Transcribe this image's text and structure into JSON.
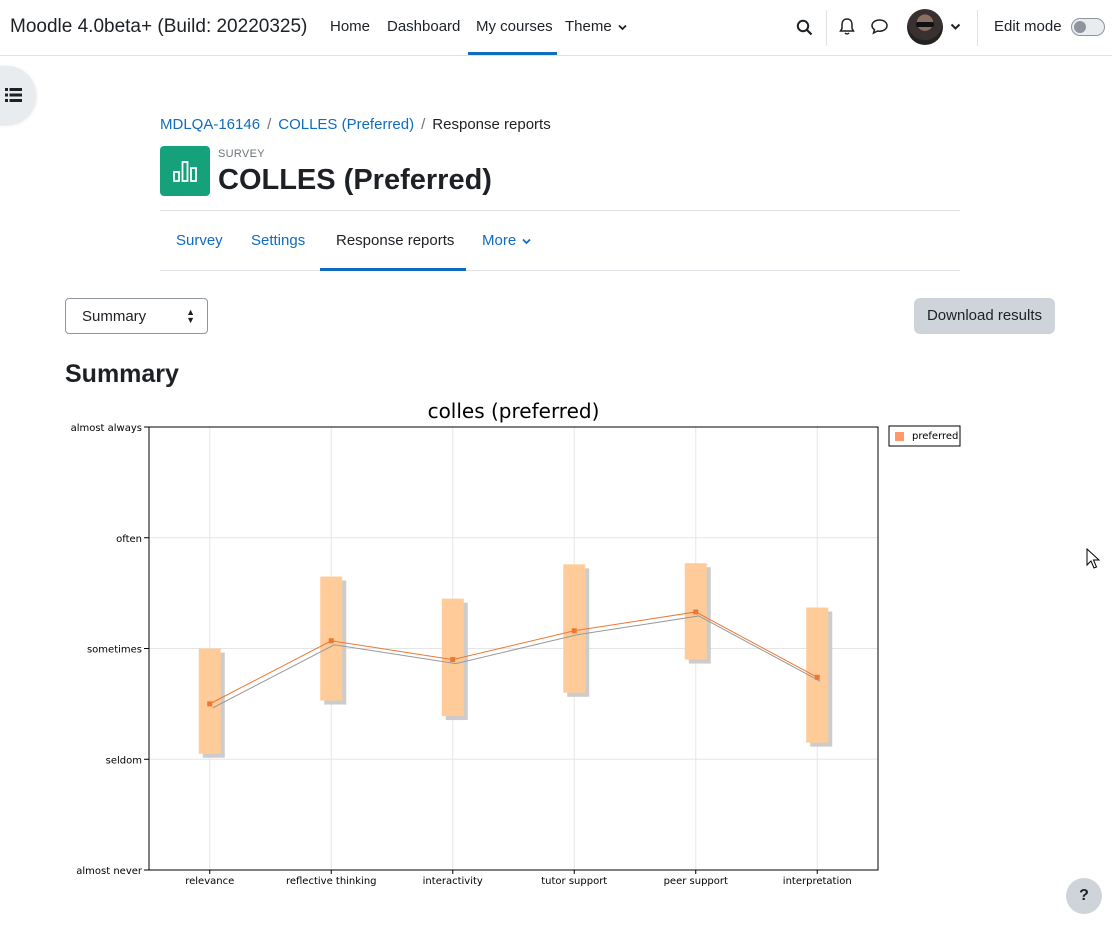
{
  "navbar": {
    "site_name": "Moodle 4.0beta+ (Build: 20220325)",
    "links": [
      "Home",
      "Dashboard",
      "My courses",
      "Theme"
    ],
    "active_link": "My courses",
    "edit_mode_label": "Edit mode",
    "edit_mode_on": false,
    "icons": [
      "search-icon",
      "bell-icon",
      "chat-icon",
      "avatar",
      "chevron-down-icon"
    ]
  },
  "breadcrumb": [
    "MDLQA-16146",
    "COLLES (Preferred)",
    "Response reports"
  ],
  "header": {
    "module_type": "SURVEY",
    "title": "COLLES (Preferred)"
  },
  "secondary_nav": {
    "tabs": [
      "Survey",
      "Settings",
      "Response reports",
      "More"
    ],
    "active_tab": "Response reports"
  },
  "controls": {
    "report_select": "Summary",
    "download_label": "Download results"
  },
  "section_title": "Summary",
  "help_label": "?",
  "chart_data": {
    "type": "box",
    "title": "colles (preferred)",
    "categories": [
      "relevance",
      "reflective thinking",
      "interactivity",
      "tutor support",
      "peer support",
      "interpretation"
    ],
    "y_tick_labels": [
      "almost never",
      "seldom",
      "sometimes",
      "often",
      "almost always"
    ],
    "ylim": [
      1,
      5
    ],
    "legend": [
      "preferred"
    ],
    "legend_position": "top-right",
    "colors": {
      "bar": "#ffcc99",
      "shadow": "#cccccc",
      "line": "#ee7733",
      "grid": "#e5e5e5"
    },
    "series": [
      {
        "name": "preferred",
        "mean": [
          2.5,
          3.07,
          2.9,
          3.16,
          3.33,
          2.74
        ],
        "low": [
          2.05,
          2.53,
          2.39,
          2.6,
          2.9,
          2.15
        ],
        "high": [
          3.0,
          3.65,
          3.45,
          3.76,
          3.77,
          3.37
        ]
      }
    ]
  }
}
